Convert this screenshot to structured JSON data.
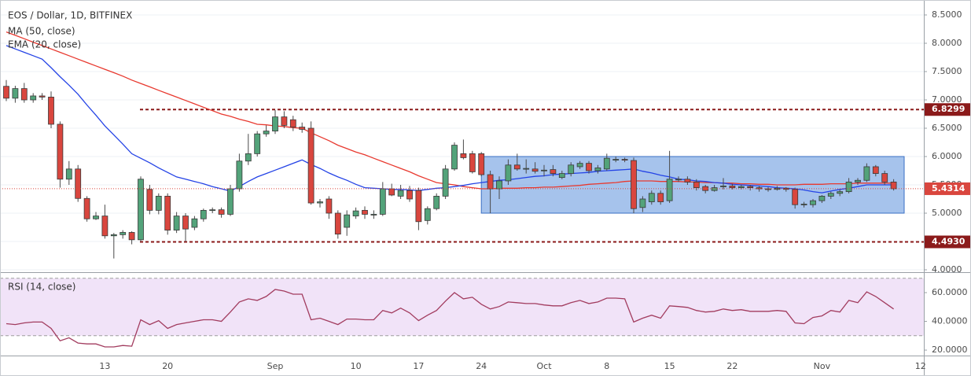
{
  "chart_data": [
    {
      "type": "candlestick",
      "title": "EOS / Dollar, 1D, BITFINEX",
      "categories": [
        null,
        null,
        null,
        null,
        null,
        null,
        null,
        null,
        null,
        null,
        null,
        "13",
        null,
        null,
        null,
        null,
        null,
        null,
        "20",
        null,
        null,
        null,
        null,
        null,
        null,
        null,
        null,
        null,
        null,
        null,
        "Sep",
        null,
        null,
        null,
        null,
        null,
        null,
        null,
        null,
        "10",
        null,
        null,
        null,
        null,
        null,
        null,
        "17",
        null,
        null,
        null,
        null,
        null,
        null,
        "24",
        null,
        null,
        null,
        null,
        null,
        null,
        "Oct",
        null,
        null,
        null,
        null,
        null,
        null,
        "8",
        null,
        null,
        null,
        null,
        null,
        null,
        "15",
        null,
        null,
        null,
        null,
        null,
        null,
        "22",
        null,
        null,
        null,
        null,
        null,
        null,
        null,
        null,
        null,
        "Nov",
        null,
        null,
        null,
        null,
        null,
        null,
        null,
        null,
        null,
        null,
        "12"
      ],
      "open": [
        7.24,
        7.03,
        7.2,
        7.0,
        7.07,
        7.05,
        6.57,
        5.6,
        5.78,
        5.26,
        4.9,
        4.95,
        4.6,
        4.62,
        4.66,
        4.53,
        5.42,
        5.05,
        5.3,
        4.7,
        4.95,
        4.75,
        4.9,
        5.05,
        5.06,
        4.98,
        5.43,
        5.92,
        6.05,
        6.4,
        6.45,
        6.7,
        6.65,
        6.52,
        6.5,
        5.18,
        5.25,
        5.0,
        4.75,
        4.95,
        5.05,
        4.98,
        4.98,
        5.43,
        5.3,
        5.4,
        5.4,
        4.87,
        5.08,
        5.3,
        5.78,
        6.05,
        6.05,
        6.05,
        5.68,
        5.43,
        5.57,
        5.85,
        5.78,
        5.78,
        5.75,
        5.77,
        5.63,
        5.7,
        5.82,
        5.88,
        5.75,
        5.78,
        5.95,
        5.95,
        5.93,
        5.1,
        5.2,
        5.35,
        5.22,
        5.6,
        5.6,
        5.55,
        5.47,
        5.4,
        5.47,
        5.48,
        5.45,
        5.47,
        5.45,
        5.43,
        5.42,
        5.44,
        5.42,
        5.15,
        5.15,
        5.22,
        5.3,
        5.35,
        5.38,
        5.55,
        5.58,
        5.82,
        5.7,
        5.55,
        null,
        null,
        null
      ],
      "high": [
        7.35,
        7.25,
        7.3,
        7.12,
        7.12,
        7.15,
        6.62,
        5.92,
        5.85,
        5.3,
        5.02,
        5.15,
        4.65,
        4.7,
        4.68,
        5.65,
        5.5,
        5.35,
        5.35,
        5.02,
        5.0,
        4.95,
        5.08,
        5.1,
        5.1,
        5.5,
        6.05,
        6.4,
        6.45,
        6.55,
        6.82,
        6.8,
        6.72,
        6.6,
        6.62,
        5.25,
        5.3,
        5.05,
        5.05,
        5.1,
        5.12,
        5.05,
        5.55,
        5.52,
        5.5,
        5.48,
        5.45,
        5.12,
        5.35,
        5.85,
        6.25,
        6.3,
        6.1,
        6.08,
        5.75,
        5.65,
        5.95,
        6.05,
        5.95,
        5.9,
        5.85,
        5.85,
        5.75,
        5.9,
        5.92,
        5.92,
        5.85,
        6.05,
        6.0,
        5.98,
        5.98,
        5.3,
        5.4,
        5.4,
        6.1,
        5.65,
        5.65,
        5.6,
        5.5,
        5.5,
        5.62,
        5.52,
        5.5,
        5.5,
        5.48,
        5.46,
        5.48,
        5.46,
        5.45,
        5.2,
        5.25,
        5.32,
        5.38,
        5.42,
        5.62,
        5.62,
        5.88,
        5.85,
        5.75,
        5.6,
        null,
        null,
        null
      ],
      "low": [
        6.98,
        6.95,
        6.95,
        6.95,
        7.0,
        6.5,
        5.45,
        5.5,
        5.2,
        4.85,
        4.88,
        4.55,
        4.2,
        4.55,
        4.45,
        4.5,
        4.98,
        4.98,
        4.62,
        4.65,
        4.5,
        4.7,
        4.85,
        5.0,
        4.92,
        4.95,
        5.38,
        5.85,
        6.0,
        6.35,
        6.4,
        6.5,
        6.45,
        6.42,
        5.15,
        5.1,
        4.9,
        4.55,
        4.6,
        4.9,
        4.9,
        4.9,
        4.95,
        5.3,
        5.25,
        5.2,
        4.7,
        4.8,
        5.05,
        5.25,
        5.75,
        5.95,
        5.7,
        5.65,
        5.0,
        5.25,
        5.5,
        5.75,
        5.7,
        5.7,
        5.65,
        5.65,
        5.6,
        5.65,
        5.78,
        5.7,
        5.7,
        5.75,
        5.9,
        5.9,
        5.0,
        5.02,
        5.15,
        5.15,
        5.18,
        5.55,
        5.5,
        5.4,
        5.35,
        5.38,
        5.42,
        5.42,
        5.42,
        5.4,
        5.38,
        5.38,
        5.4,
        5.38,
        5.08,
        5.1,
        5.1,
        5.18,
        5.25,
        5.3,
        5.35,
        5.5,
        5.55,
        5.65,
        5.5,
        5.4,
        null,
        null,
        null
      ],
      "close": [
        7.03,
        7.2,
        7.0,
        7.07,
        7.05,
        6.57,
        5.6,
        5.78,
        5.26,
        4.9,
        4.95,
        4.6,
        4.62,
        4.66,
        4.53,
        5.6,
        5.05,
        5.3,
        4.7,
        4.95,
        4.72,
        4.9,
        5.05,
        5.06,
        4.98,
        5.43,
        5.92,
        6.05,
        6.4,
        6.45,
        6.7,
        6.55,
        6.52,
        6.48,
        5.18,
        5.2,
        5.0,
        4.63,
        4.97,
        5.04,
        4.98,
        4.98,
        5.43,
        5.32,
        5.4,
        5.25,
        4.85,
        5.08,
        5.3,
        5.78,
        6.2,
        5.98,
        5.73,
        5.68,
        5.43,
        5.57,
        5.85,
        5.78,
        5.79,
        5.74,
        5.76,
        5.7,
        5.7,
        5.85,
        5.88,
        5.75,
        5.8,
        5.97,
        5.95,
        5.94,
        5.08,
        5.25,
        5.35,
        5.2,
        5.6,
        5.6,
        5.55,
        5.45,
        5.4,
        5.45,
        5.48,
        5.45,
        5.47,
        5.45,
        5.43,
        5.42,
        5.44,
        5.42,
        5.15,
        5.16,
        5.22,
        5.3,
        5.35,
        5.38,
        5.55,
        5.58,
        5.82,
        5.7,
        5.55,
        5.4314,
        null,
        null,
        null
      ],
      "up_color": "#53a37a",
      "down_color": "#d9463e",
      "series": [
        {
          "name": "MA (50, close)",
          "color": "#e8392f",
          "values": [
            8.2,
            8.14,
            8.08,
            8.02,
            7.96,
            7.9,
            7.84,
            7.78,
            7.72,
            7.66,
            7.6,
            7.54,
            7.48,
            7.42,
            7.35,
            7.29,
            7.23,
            7.17,
            7.11,
            7.05,
            6.99,
            6.93,
            6.87,
            6.81,
            6.75,
            6.71,
            6.66,
            6.62,
            6.57,
            6.56,
            6.54,
            6.53,
            6.51,
            6.5,
            6.42,
            6.35,
            6.28,
            6.2,
            6.14,
            6.08,
            6.03,
            5.97,
            5.91,
            5.85,
            5.79,
            5.73,
            5.66,
            5.6,
            5.54,
            5.52,
            5.5,
            5.47,
            5.45,
            5.43,
            5.43,
            5.44,
            5.44,
            5.44,
            5.45,
            5.45,
            5.46,
            5.46,
            5.47,
            5.48,
            5.49,
            5.51,
            5.52,
            5.53,
            5.54,
            5.56,
            5.57,
            5.57,
            5.57,
            5.56,
            5.56,
            5.56,
            5.55,
            5.55,
            5.54,
            5.54,
            5.53,
            5.53,
            5.52,
            5.52,
            5.51,
            5.51,
            5.5,
            5.5,
            5.5,
            5.51,
            5.51,
            5.51,
            5.52,
            5.52,
            5.52,
            5.53,
            5.53,
            5.53,
            5.53,
            5.53,
            null,
            null,
            null
          ]
        },
        {
          "name": "EMA (20, close)",
          "color": "#2443e6",
          "values": [
            7.96,
            7.9,
            7.84,
            7.78,
            7.72,
            7.57,
            7.41,
            7.26,
            7.1,
            6.91,
            6.73,
            6.54,
            6.38,
            6.22,
            6.05,
            5.97,
            5.89,
            5.8,
            5.72,
            5.64,
            5.6,
            5.56,
            5.52,
            5.47,
            5.43,
            5.39,
            5.47,
            5.56,
            5.64,
            5.7,
            5.76,
            5.82,
            5.88,
            5.94,
            5.86,
            5.79,
            5.71,
            5.64,
            5.58,
            5.51,
            5.45,
            5.44,
            5.43,
            5.42,
            5.42,
            5.41,
            5.4,
            5.42,
            5.44,
            5.45,
            5.47,
            5.49,
            5.52,
            5.54,
            5.56,
            5.58,
            5.59,
            5.61,
            5.63,
            5.65,
            5.66,
            5.68,
            5.69,
            5.7,
            5.71,
            5.72,
            5.74,
            5.75,
            5.76,
            5.77,
            5.78,
            5.74,
            5.71,
            5.67,
            5.64,
            5.6,
            5.59,
            5.57,
            5.56,
            5.54,
            5.53,
            5.51,
            5.5,
            5.49,
            5.48,
            5.47,
            5.45,
            5.44,
            5.43,
            5.41,
            5.38,
            5.36,
            5.39,
            5.42,
            5.44,
            5.47,
            5.5,
            5.5,
            5.5,
            5.5,
            null,
            null,
            null
          ]
        }
      ],
      "ylim": [
        3.972,
        8.764
      ],
      "yticks": [
        {
          "value": 4.0,
          "label": "4.0000"
        },
        {
          "value": 4.5,
          "label": "4.5000"
        },
        {
          "value": 5.0,
          "label": "5.0000"
        },
        {
          "value": 5.5,
          "label": "5.5000"
        },
        {
          "value": 6.0,
          "label": "6.0000"
        },
        {
          "value": 6.5,
          "label": "6.5000"
        },
        {
          "value": 7.0,
          "label": "7.0000"
        },
        {
          "value": 7.5,
          "label": "7.5000"
        },
        {
          "value": 8.0,
          "label": "8.0000"
        },
        {
          "value": 8.5,
          "label": "8.5000"
        }
      ],
      "levels": [
        6.8299,
        {
          "value": 4.493,
          "label": "4.4930"
        }
      ],
      "level_color": "#8b1a1a",
      "zone": {
        "low": 5.0,
        "high": 6.0,
        "color": "#6a9be0"
      },
      "grid": true
    },
    {
      "type": "line",
      "title": "RSI (14, close)",
      "color": "#a23c5f",
      "values": [
        38.4,
        37.8,
        38.9,
        39.5,
        39.5,
        35.1,
        26.5,
        28.6,
        24.9,
        24.3,
        24.3,
        22.2,
        22.2,
        23.2,
        22.7,
        41.1,
        37.8,
        40.5,
        35.1,
        37.8,
        38.9,
        40,
        41.1,
        41.1,
        40,
        46.5,
        53.5,
        55.7,
        54.6,
        57.3,
        62.2,
        61.1,
        58.9,
        58.9,
        41.1,
        42.2,
        40,
        37.8,
        41.6,
        41.6,
        41.1,
        41.1,
        47.6,
        45.9,
        49.2,
        45.9,
        40.5,
        44.3,
        47.6,
        54.1,
        60,
        55.7,
        56.8,
        51.9,
        48.6,
        50.3,
        53.5,
        53,
        52.4,
        52.4,
        51.4,
        50.8,
        50.8,
        53,
        54.6,
        52.4,
        53.5,
        56.2,
        56.2,
        55.7,
        39.5,
        42.2,
        44.3,
        42.2,
        50.8,
        50.3,
        49.7,
        47.6,
        46.5,
        47,
        48.6,
        47.6,
        48.1,
        47,
        47,
        47,
        47.6,
        47,
        38.9,
        38.4,
        42.7,
        43.8,
        47.6,
        46.5,
        54.6,
        53,
        60.5,
        57.3,
        53,
        48.6,
        null,
        null,
        null
      ],
      "ylim": [
        16.2,
        72.6
      ],
      "yticks": [
        {
          "value": 20,
          "label": "20.0000"
        },
        {
          "value": 40,
          "label": "40.0000"
        },
        {
          "value": 60,
          "label": "60.0000"
        }
      ],
      "band": [
        30,
        70
      ],
      "band_color": "#f1e3f8"
    }
  ]
}
